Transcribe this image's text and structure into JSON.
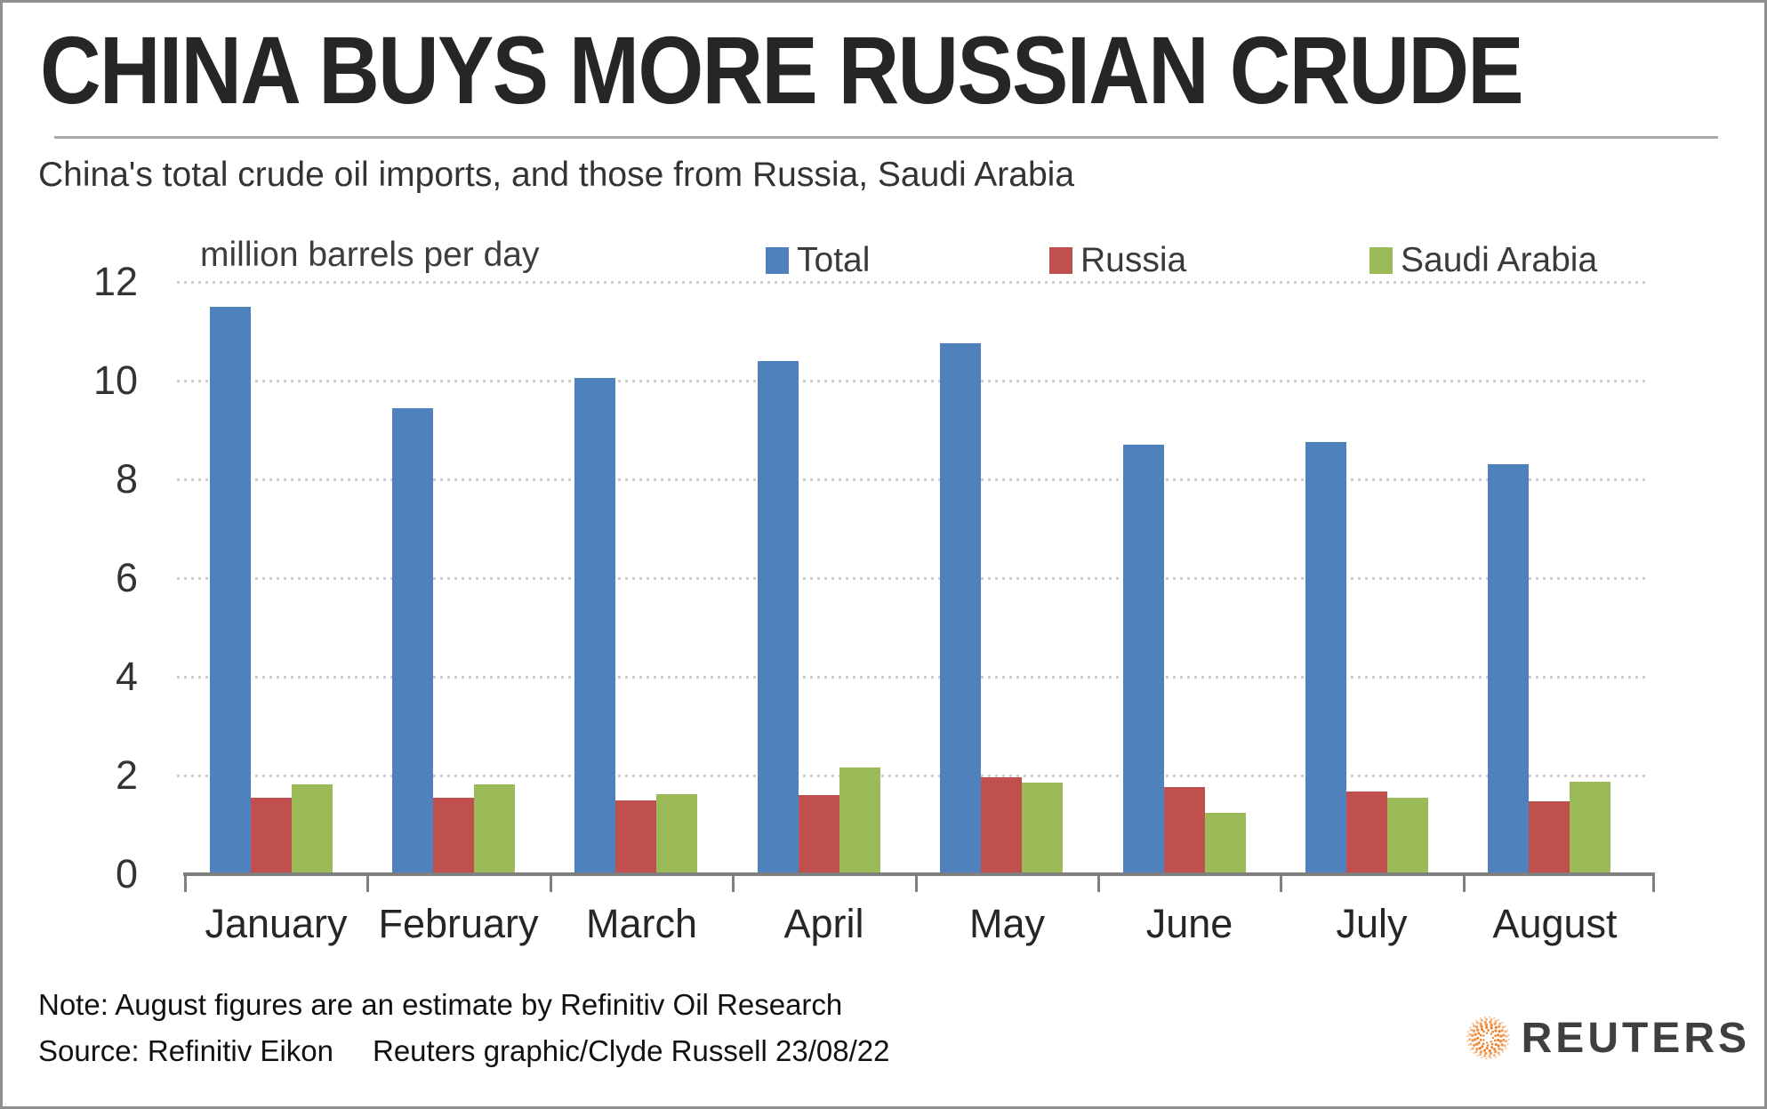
{
  "header": {
    "title": "CHINA BUYS MORE RUSSIAN CRUDE",
    "subtitle": "China's total crude oil imports, and those from Russia, Saudi Arabia"
  },
  "chart_data": {
    "type": "bar",
    "title": "CHINA BUYS MORE RUSSIAN CRUDE",
    "unit_label": "million barrels per day",
    "categories": [
      "January",
      "February",
      "March",
      "April",
      "May",
      "June",
      "July",
      "August"
    ],
    "series": [
      {
        "name": "Total",
        "color": "#4F81BD",
        "values": [
          11.5,
          9.45,
          10.05,
          10.4,
          10.75,
          8.7,
          8.75,
          8.3
        ]
      },
      {
        "name": "Russia",
        "color": "#C0504D",
        "values": [
          1.55,
          1.55,
          1.5,
          1.6,
          1.97,
          1.77,
          1.68,
          1.48
        ]
      },
      {
        "name": "Saudi Arabia",
        "color": "#9BBB59",
        "values": [
          1.82,
          1.82,
          1.62,
          2.17,
          1.85,
          1.25,
          1.55,
          1.88
        ]
      }
    ],
    "xlabel": "",
    "ylabel": "million barrels per day",
    "ylim": [
      0,
      12
    ],
    "yticks": [
      0,
      2,
      4,
      6,
      8,
      10,
      12
    ],
    "grid": "dotted-horizontal",
    "legend_position": "top"
  },
  "footer": {
    "note": "Note: August figures are an estimate by Refinitiv Oil Research",
    "source": "Source: Refinitiv Eikon",
    "credit": "Reuters graphic/Clyde Russell 23/08/22",
    "logo_text": "REUTERS"
  },
  "colors": {
    "total_bar": "#4F81BD",
    "russia_bar": "#C0504D",
    "saudi_bar": "#9BBB59",
    "axis_gray": "#7f7f7f",
    "gridline_gray": "#cccccc",
    "logo_orange": "#ee7d22"
  }
}
